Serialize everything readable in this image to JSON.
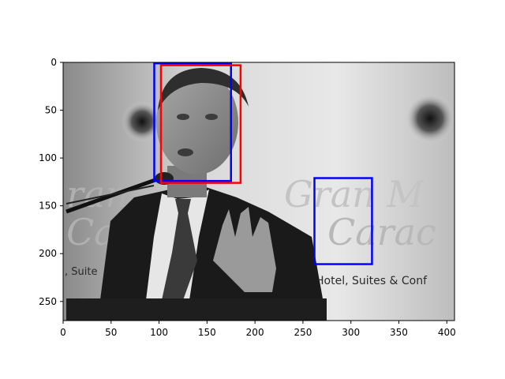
{
  "chart_data": {
    "type": "image-with-boxes",
    "title": "",
    "xlabel": "",
    "ylabel": "",
    "xlim": [
      0,
      408
    ],
    "ylim": [
      270,
      0
    ],
    "xticks": [
      0,
      50,
      100,
      150,
      200,
      250,
      300,
      350,
      400
    ],
    "yticks": [
      0,
      50,
      100,
      150,
      200,
      250
    ],
    "image": {
      "description": "grayscale photo of a man in suit speaking at a podium microphone, gesturing with raised hand; banner behind reads 'Gran ... Caracas ... Hotel, Suites & Conference'",
      "visible_text": [
        "Hotel, Suites & Conf",
        ", Suite"
      ]
    },
    "boxes": [
      {
        "color": "#0000ff",
        "x0": 95,
        "y0": 1,
        "x1": 175,
        "y1": 124
      },
      {
        "color": "#ff0000",
        "x0": 102,
        "y0": 3,
        "x1": 185,
        "y1": 126
      },
      {
        "color": "#0000ff",
        "x0": 262,
        "y0": 121,
        "x1": 322,
        "y1": 211
      }
    ],
    "grid": false
  }
}
